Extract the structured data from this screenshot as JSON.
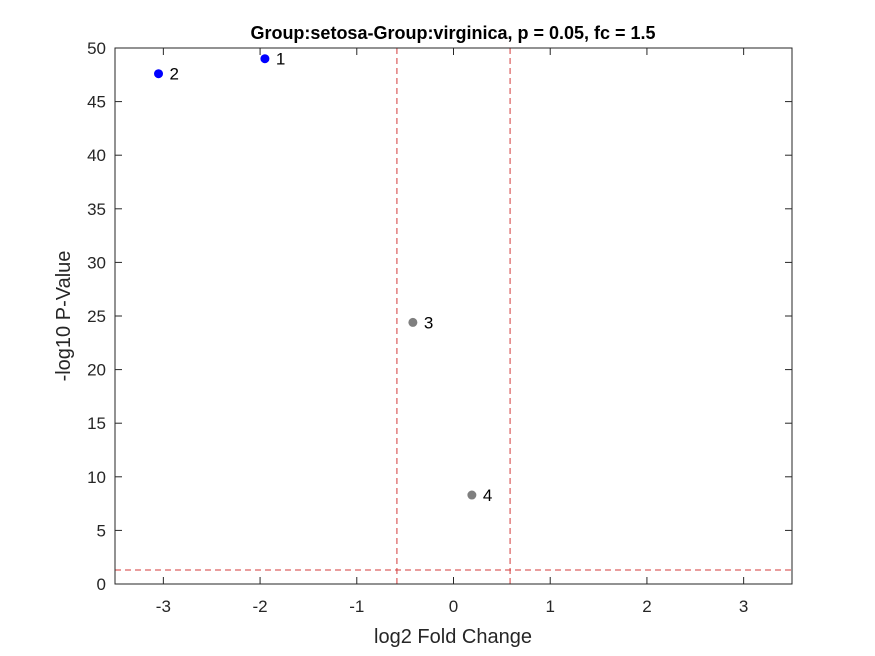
{
  "chart_data": {
    "type": "scatter",
    "title": "Group:setosa-Group:virginica, p = 0.05, fc = 1.5",
    "xlabel": "log2 Fold Change",
    "ylabel": "-log10 P-Value",
    "xlim": [
      -3.5,
      3.5
    ],
    "ylim": [
      0,
      50
    ],
    "xticks": [
      -3,
      -2,
      -1,
      0,
      1,
      2,
      3
    ],
    "xticklabels": [
      "-3",
      "-2",
      "-1",
      "0",
      "1",
      "2",
      "3"
    ],
    "yticks": [
      0,
      5,
      10,
      15,
      20,
      25,
      30,
      35,
      40,
      45,
      50
    ],
    "yticklabels": [
      "0",
      "5",
      "10",
      "15",
      "20",
      "25",
      "30",
      "35",
      "40",
      "45",
      "50"
    ],
    "grid": false,
    "points": [
      {
        "label": "1",
        "x": -1.95,
        "y": 49.0,
        "color": "#0000ff"
      },
      {
        "label": "2",
        "x": -3.05,
        "y": 47.6,
        "color": "#0000ff"
      },
      {
        "label": "3",
        "x": -0.42,
        "y": 24.4,
        "color": "#7f7f7f"
      },
      {
        "label": "4",
        "x": 0.19,
        "y": 8.3,
        "color": "#7f7f7f"
      }
    ],
    "threshold_lines": [
      {
        "orientation": "vertical",
        "value": -0.585
      },
      {
        "orientation": "vertical",
        "value": 0.585
      },
      {
        "orientation": "horizontal",
        "value": 1.301
      }
    ],
    "threshold_color": "#d43a3a"
  }
}
